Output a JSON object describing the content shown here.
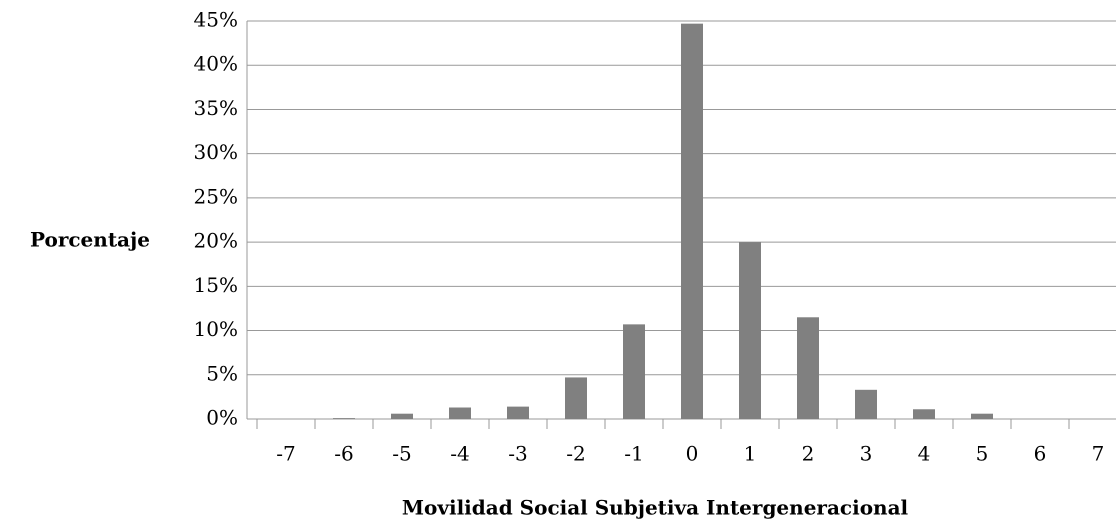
{
  "chart_data": {
    "type": "bar",
    "x_label": "Movilidad Social Subjetiva Intergeneracional",
    "y_label": "Porcentaje",
    "categories": [
      "-7",
      "-6",
      "-5",
      "-4",
      "-3",
      "-2",
      "-1",
      "0",
      "1",
      "2",
      "3",
      "4",
      "5",
      "6",
      "7"
    ],
    "values": [
      0,
      0.1,
      0.6,
      1.3,
      1.4,
      4.7,
      10.7,
      44.7,
      20.0,
      11.5,
      3.3,
      1.1,
      0.6,
      0,
      0
    ],
    "color": "#808080",
    "ylim": [
      0,
      45
    ],
    "yticks": [
      {
        "value": 0,
        "label": "0%"
      },
      {
        "value": 5,
        "label": "5%"
      },
      {
        "value": 10,
        "label": "10%"
      },
      {
        "value": 15,
        "label": "15%"
      },
      {
        "value": 20,
        "label": "20%"
      },
      {
        "value": 25,
        "label": "25%"
      },
      {
        "value": 30,
        "label": "30%"
      },
      {
        "value": 35,
        "label": "35%"
      },
      {
        "value": 40,
        "label": "40%"
      },
      {
        "value": 45,
        "label": "45%"
      }
    ],
    "grid": true
  }
}
